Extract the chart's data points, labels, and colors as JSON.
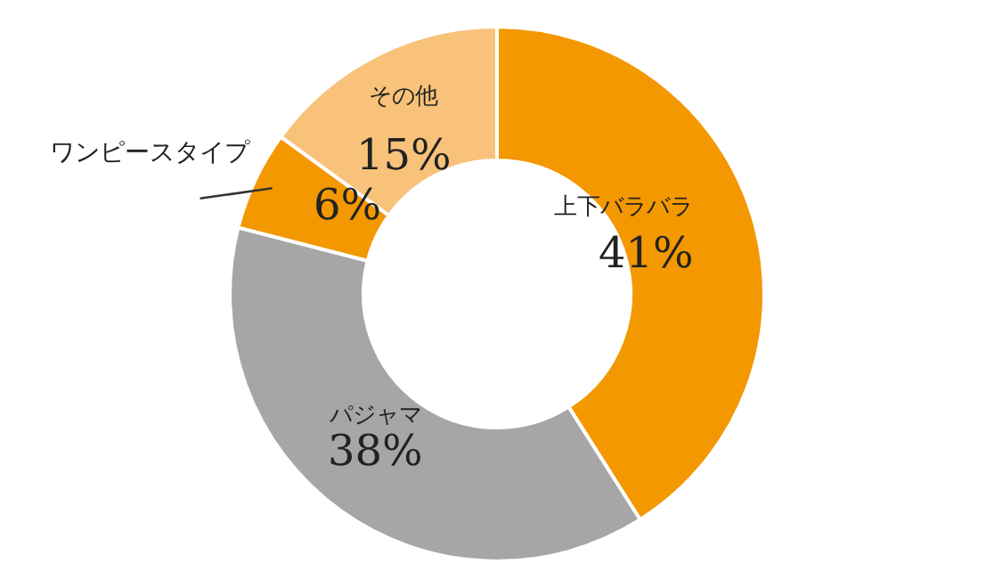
{
  "chart_data": {
    "type": "donut",
    "categories": [
      "上下バラバラ",
      "パジャマ",
      "ワンピースタイプ",
      "その他"
    ],
    "values": [
      41,
      38,
      6,
      15
    ],
    "value_labels": [
      "41%",
      "38%",
      "6%",
      "15%"
    ],
    "colors": [
      "#f39800",
      "#a6a6a6",
      "#f39800",
      "#f8c27a"
    ],
    "legend": false
  }
}
